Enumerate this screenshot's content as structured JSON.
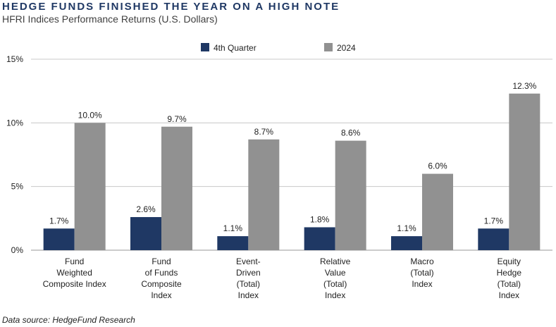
{
  "header": {
    "title": "HEDGE FUNDS FINISHED THE YEAR ON A HIGH NOTE",
    "subtitle": "HFRI Indices Performance Returns (U.S. Dollars)"
  },
  "footer": {
    "source": "Data source: HedgeFund Research"
  },
  "colors": {
    "q4": "#1f3864",
    "y2024": "#919191",
    "grid": "#c8c8c8",
    "axis": "#9a9a9a"
  },
  "chart_data": {
    "type": "bar",
    "title": "HEDGE FUNDS FINISHED THE YEAR ON A HIGH NOTE",
    "subtitle": "HFRI Indices Performance Returns (U.S. Dollars)",
    "categories": [
      [
        "Fund",
        "Weighted",
        "Composite Index"
      ],
      [
        "Fund",
        "of Funds",
        "Composite",
        "Index"
      ],
      [
        "Event-",
        "Driven",
        "(Total)",
        "Index"
      ],
      [
        "Relative",
        "Value",
        "(Total)",
        "Index"
      ],
      [
        "Macro",
        "(Total)",
        "Index"
      ],
      [
        "Equity",
        "Hedge",
        "(Total)",
        "Index"
      ]
    ],
    "series": [
      {
        "name": "4th Quarter",
        "values": [
          1.7,
          2.6,
          1.1,
          1.8,
          1.1,
          1.7
        ],
        "labels": [
          "1.7%",
          "2.6%",
          "1.1%",
          "1.8%",
          "1.1%",
          "1.7%"
        ]
      },
      {
        "name": "2024",
        "values": [
          10.0,
          9.7,
          8.7,
          8.6,
          6.0,
          12.3
        ],
        "labels": [
          "10.0%",
          "9.7%",
          "8.7%",
          "8.6%",
          "6.0%",
          "12.3%"
        ]
      }
    ],
    "yticks": [
      "0%",
      "5%",
      "10%",
      "15%"
    ],
    "ylim": [
      0,
      15
    ],
    "grid": true,
    "legend_position": "top"
  }
}
